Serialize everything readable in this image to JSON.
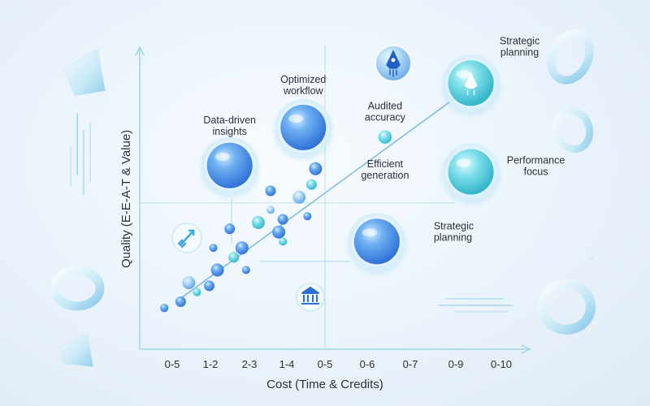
{
  "chart_data": {
    "type": "scatter",
    "title": "",
    "xlabel": "Cost (Time & Credits)",
    "ylabel": "Quality (E-E-A-T & Value)",
    "categories": [
      "0-5",
      "1-2",
      "2-3",
      "1-4",
      "0-5",
      "0-6",
      "0-7",
      "0-9",
      "0-10"
    ],
    "grid": false,
    "legend": "none",
    "colors": {
      "axis": "#9fd3e6",
      "point": "#3b82e0",
      "point_light": "#7cc3f0",
      "teal": "#48c9d8",
      "trend": "#5aa9e6",
      "text": "#2b2f36"
    },
    "scatter_points": [
      {
        "x": 0.6,
        "y": 1.3
      },
      {
        "x": 1.0,
        "y": 1.5
      },
      {
        "x": 1.2,
        "y": 2.1
      },
      {
        "x": 1.4,
        "y": 1.8
      },
      {
        "x": 1.7,
        "y": 2.0
      },
      {
        "x": 1.9,
        "y": 2.5
      },
      {
        "x": 1.8,
        "y": 3.2
      },
      {
        "x": 2.3,
        "y": 2.9
      },
      {
        "x": 2.5,
        "y": 3.2
      },
      {
        "x": 2.6,
        "y": 2.5
      },
      {
        "x": 2.2,
        "y": 3.8
      },
      {
        "x": 2.9,
        "y": 4.0
      },
      {
        "x": 3.2,
        "y": 4.4
      },
      {
        "x": 3.5,
        "y": 4.1
      },
      {
        "x": 3.4,
        "y": 3.7
      },
      {
        "x": 3.5,
        "y": 3.4
      },
      {
        "x": 3.2,
        "y": 5.0
      },
      {
        "x": 3.9,
        "y": 4.8
      },
      {
        "x": 4.1,
        "y": 4.2
      },
      {
        "x": 4.2,
        "y": 5.2
      },
      {
        "x": 4.3,
        "y": 5.7
      }
    ],
    "highlights": [
      {
        "label": "Data-driven insights",
        "x": 2.2,
        "y": 5.8,
        "size": "large",
        "color": "blue"
      },
      {
        "label": "Optimized workflow",
        "x": 4.0,
        "y": 7.0,
        "size": "large",
        "color": "blue"
      },
      {
        "label": "Audited accuracy",
        "x": 6.0,
        "y": 6.7,
        "size": "small",
        "color": "teal"
      },
      {
        "label": "Efficient generation",
        "x": 6.0,
        "y": 6.0,
        "size": "none",
        "color": "teal"
      },
      {
        "label": "Strategic planning",
        "x": 8.1,
        "y": 8.4,
        "size": "large",
        "color": "teal"
      },
      {
        "label": "Performance focus",
        "x": 8.1,
        "y": 5.6,
        "size": "large",
        "color": "teal"
      },
      {
        "label": "Strategic planning",
        "x": 5.8,
        "y": 3.4,
        "size": "large",
        "color": "blue"
      }
    ],
    "trend_line": {
      "from": [
        1.0,
        1.6
      ],
      "to": [
        8.0,
        8.2
      ]
    }
  }
}
